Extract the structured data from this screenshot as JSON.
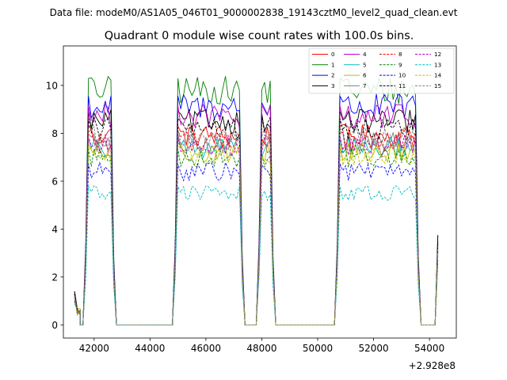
{
  "chart_data": {
    "type": "line",
    "suptitle": "Data file: modeM0/AS1A05_046T01_9000002838_19143cztM0_level2_quad_clean.evt",
    "title": "Quadrant 0 module wise count rates with 100.0s bins.",
    "xlabel": "",
    "ylabel": "",
    "x_offset_label": "+2.928e8",
    "xlim": [
      40900,
      54960
    ],
    "ylim": [
      -0.55,
      11.65
    ],
    "xticks": [
      42000,
      44000,
      46000,
      48000,
      50000,
      52000,
      54000
    ],
    "xtick_labels": [
      "42000",
      "44000",
      "46000",
      "48000",
      "50000",
      "52000",
      "54000"
    ],
    "yticks": [
      0,
      2,
      4,
      6,
      8,
      10
    ],
    "ytick_labels": [
      "0",
      "2",
      "4",
      "6",
      "8",
      "10"
    ],
    "legend_position": "upper right",
    "segments": [
      {
        "x_start": 41300,
        "x_end": 41500,
        "level_index": 1
      },
      {
        "x_start": 41500,
        "x_end": 41600,
        "level_index": 0
      },
      {
        "x_start": 41700,
        "x_end": 42700,
        "level_index": 2
      },
      {
        "x_start": 42800,
        "x_end": 44800,
        "level_index": 0
      },
      {
        "x_start": 44900,
        "x_end": 47300,
        "level_index": 2
      },
      {
        "x_start": 47400,
        "x_end": 47800,
        "level_index": 0
      },
      {
        "x_start": 47900,
        "x_end": 48400,
        "level_index": 2
      },
      {
        "x_start": 48500,
        "x_end": 50600,
        "level_index": 0
      },
      {
        "x_start": 50700,
        "x_end": 53600,
        "level_index": 2
      },
      {
        "x_start": 53700,
        "x_end": 54200,
        "level_index": 0
      },
      {
        "x_start": 54300,
        "x_end": 54300,
        "level_index": 3
      }
    ],
    "series": [
      {
        "name": "0",
        "color": "#ff0000",
        "dashed": false,
        "mean": 7.9,
        "edge": 1.4,
        "tail": 3.2
      },
      {
        "name": "1",
        "color": "#008000",
        "dashed": false,
        "mean": 9.8,
        "edge": 1.3,
        "tail": 3.7
      },
      {
        "name": "2",
        "color": "#0000ff",
        "dashed": false,
        "mean": 9.1,
        "edge": 1.3,
        "tail": 3.5
      },
      {
        "name": "3",
        "color": "#000000",
        "dashed": false,
        "mean": 8.5,
        "edge": 1.4,
        "tail": 3.75
      },
      {
        "name": "4",
        "color": "#bf00bf",
        "dashed": false,
        "mean": 8.7,
        "edge": 1.2,
        "tail": 3.3
      },
      {
        "name": "5",
        "color": "#00bfbf",
        "dashed": false,
        "mean": 7.4,
        "edge": 1.1,
        "tail": 3.0
      },
      {
        "name": "6",
        "color": "#bfbf00",
        "dashed": false,
        "mean": 7.2,
        "edge": 1.1,
        "tail": 3.0
      },
      {
        "name": "7",
        "color": "#808080",
        "dashed": false,
        "mean": 7.6,
        "edge": 1.2,
        "tail": 3.1
      },
      {
        "name": "8",
        "color": "#ff0000",
        "dashed": true,
        "mean": 7.7,
        "edge": 1.2,
        "tail": 3.1
      },
      {
        "name": "9",
        "color": "#008000",
        "dashed": true,
        "mean": 7.0,
        "edge": 1.1,
        "tail": 2.9
      },
      {
        "name": "10",
        "color": "#0000ff",
        "dashed": true,
        "mean": 6.4,
        "edge": 1.0,
        "tail": 2.7
      },
      {
        "name": "11",
        "color": "#000000",
        "dashed": true,
        "mean": 8.2,
        "edge": 1.3,
        "tail": 3.4
      },
      {
        "name": "12",
        "color": "#bf00bf",
        "dashed": true,
        "mean": 7.5,
        "edge": 1.2,
        "tail": 3.1
      },
      {
        "name": "13",
        "color": "#00bfbf",
        "dashed": true,
        "mean": 5.5,
        "edge": 0.9,
        "tail": 2.5
      },
      {
        "name": "14",
        "color": "#bfbf00",
        "dashed": true,
        "mean": 7.1,
        "edge": 1.1,
        "tail": 3.0
      },
      {
        "name": "15",
        "color": "#808080",
        "dashed": true,
        "mean": 7.8,
        "edge": 1.2,
        "tail": 3.2
      }
    ]
  }
}
